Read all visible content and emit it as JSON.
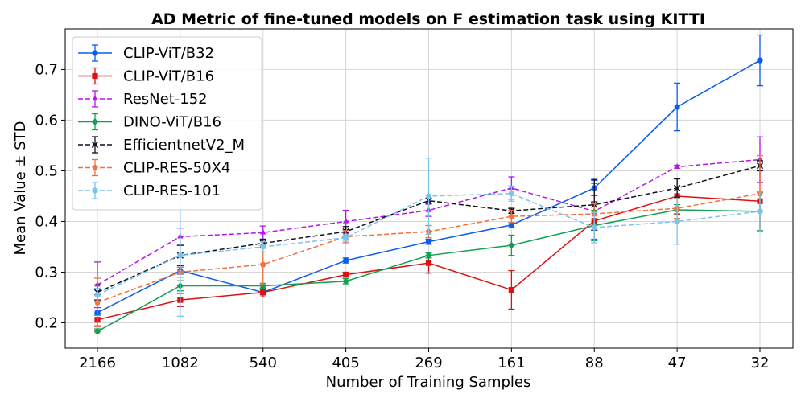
{
  "chart_data": {
    "type": "line",
    "title": "AD Metric of fine-tuned models on F estimation task using KITTI",
    "xlabel": "Number of Training Samples",
    "ylabel": "Mean Value ± STD",
    "categories": [
      "2166",
      "1082",
      "540",
      "405",
      "269",
      "161",
      "88",
      "47",
      "32"
    ],
    "ylim": [
      0.15,
      0.78
    ],
    "yticks": [
      0.2,
      0.3,
      0.4,
      0.5,
      0.6,
      0.7
    ],
    "grid": true,
    "legend_position": "top-left",
    "series": [
      {
        "name": "CLIP-ViT/B32",
        "color": "#0b5ced",
        "dash": "solid",
        "marker": "circle",
        "values": [
          0.22,
          0.303,
          0.26,
          0.323,
          0.36,
          0.393,
          0.466,
          0.626,
          0.718
        ],
        "errors": [
          0.005,
          0.007,
          0.005,
          0.005,
          0.005,
          0.005,
          0.015,
          0.047,
          0.05
        ]
      },
      {
        "name": "CLIP-ViT/B16",
        "color": "#dd1111",
        "dash": "solid",
        "marker": "square",
        "values": [
          0.206,
          0.245,
          0.26,
          0.295,
          0.318,
          0.265,
          0.401,
          0.45,
          0.44
        ],
        "errors": [
          0.012,
          0.013,
          0.009,
          0.005,
          0.02,
          0.038,
          0.038,
          0.035,
          0.06
        ]
      },
      {
        "name": "ResNet-152",
        "color": "#b515f0",
        "dash": "dashed",
        "marker": "triangle",
        "values": [
          0.275,
          0.37,
          0.378,
          0.4,
          0.422,
          0.466,
          0.42,
          0.508,
          0.522
        ],
        "errors": [
          0.045,
          0.017,
          0.013,
          0.022,
          0.012,
          0.022,
          0.055,
          0.003,
          0.045
        ]
      },
      {
        "name": "DINO-ViT/B16",
        "color": "#10a050",
        "dash": "solid",
        "marker": "diamond",
        "values": [
          0.183,
          0.273,
          0.273,
          0.282,
          0.333,
          0.353,
          0.392,
          0.423,
          0.42
        ],
        "errors": [
          0.005,
          0.01,
          0.005,
          0.005,
          0.005,
          0.02,
          0.03,
          0.01,
          0.038
        ]
      },
      {
        "name": "EfficientnetV2_M",
        "color": "#111122",
        "dash": "dashed",
        "marker": "x",
        "values": [
          0.26,
          0.333,
          0.357,
          0.38,
          0.441,
          0.421,
          0.433,
          0.466,
          0.51
        ],
        "errors": [
          0.015,
          0.02,
          0.008,
          0.01,
          0.005,
          0.005,
          0.05,
          0.018,
          0.01
        ]
      },
      {
        "name": "CLIP-RES-50X4",
        "color": "#f07040",
        "dash": "dashed",
        "marker": "pentagon",
        "values": [
          0.24,
          0.3,
          0.315,
          0.37,
          0.38,
          0.41,
          0.415,
          0.426,
          0.455
        ],
        "errors": [
          0.048,
          0.01,
          0.038,
          0.012,
          0.012,
          0.012,
          0.02,
          0.02,
          0.075
        ]
      },
      {
        "name": "CLIP-RES-101",
        "color": "#7cc4ee",
        "dash": "dashed",
        "marker": "hexagon",
        "values": [
          0.255,
          0.333,
          0.35,
          0.368,
          0.45,
          0.455,
          0.388,
          0.4,
          0.42
        ],
        "errors": [
          0.013,
          0.12,
          0.01,
          0.007,
          0.075,
          0.015,
          0.03,
          0.045,
          0.04
        ]
      }
    ]
  }
}
